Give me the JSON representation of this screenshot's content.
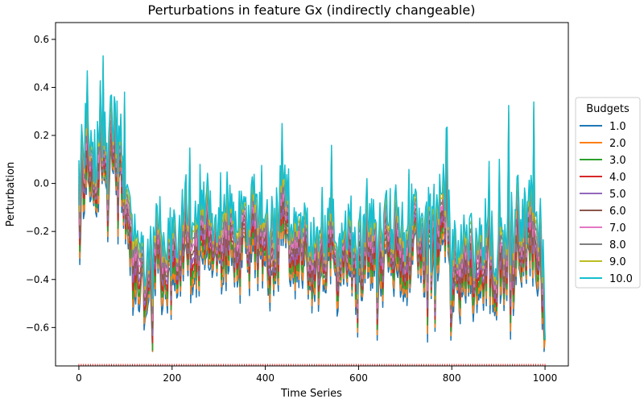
{
  "chart_data": {
    "type": "line",
    "title": "Perturbations in feature Gx (indirectly changeable)",
    "xlabel": "Time Series",
    "ylabel": "Perturbation",
    "xlim": [
      -50,
      1050
    ],
    "ylim": [
      -0.76,
      0.67
    ],
    "xticks": [
      0,
      200,
      400,
      600,
      800,
      1000
    ],
    "xtick_labels": [
      "0",
      "200",
      "400",
      "600",
      "800",
      "1000"
    ],
    "yticks": [
      -0.6,
      -0.4,
      -0.2,
      0.0,
      0.2,
      0.4,
      0.6
    ],
    "ytick_labels": [
      "−0.6",
      "−0.4",
      "−0.2",
      "0.0",
      "0.2",
      "0.4",
      "0.6"
    ],
    "grid": false,
    "legend": {
      "title": "Budgets",
      "placement": "center-right outside",
      "entries": [
        "1.0",
        "2.0",
        "3.0",
        "4.0",
        "5.0",
        "6.0",
        "7.0",
        "8.0",
        "9.0",
        "10.0"
      ]
    },
    "colors": [
      "#1f77b4",
      "#ff7f0e",
      "#2ca02c",
      "#d62728",
      "#9467bd",
      "#8c564b",
      "#e377c2",
      "#7f7f7f",
      "#bcbd22",
      "#17becf"
    ],
    "base_curve": {
      "x": [
        0,
        10,
        20,
        30,
        40,
        50,
        60,
        65,
        70,
        75,
        80,
        90,
        100,
        110,
        120,
        130,
        140,
        150,
        160,
        170,
        180,
        190,
        200,
        210,
        220,
        230,
        240,
        250,
        260,
        270,
        280,
        290,
        300,
        310,
        320,
        330,
        340,
        350,
        360,
        370,
        380,
        390,
        400,
        410,
        420,
        430,
        440,
        450,
        460,
        470,
        480,
        490,
        500,
        510,
        520,
        530,
        540,
        550,
        560,
        570,
        580,
        590,
        600,
        610,
        620,
        630,
        640,
        650,
        660,
        670,
        680,
        690,
        700,
        710,
        720,
        730,
        740,
        750,
        760,
        770,
        780,
        790,
        800,
        810,
        820,
        830,
        840,
        850,
        860,
        870,
        880,
        890,
        900,
        910,
        920,
        930,
        940,
        950,
        960,
        970,
        980,
        990,
        1000
      ],
      "y": [
        0.02,
        0.06,
        0.02,
        0.04,
        0.03,
        0.06,
        0.04,
        0.18,
        0.15,
        0.22,
        0.12,
        0.15,
        -0.15,
        -0.2,
        -0.35,
        -0.38,
        -0.4,
        -0.42,
        -0.3,
        -0.25,
        -0.35,
        -0.38,
        -0.3,
        -0.35,
        -0.28,
        -0.2,
        -0.35,
        -0.22,
        -0.18,
        -0.2,
        -0.15,
        -0.25,
        -0.18,
        -0.25,
        -0.15,
        -0.2,
        -0.3,
        -0.2,
        -0.25,
        -0.2,
        -0.18,
        -0.25,
        -0.2,
        -0.28,
        -0.3,
        -0.22,
        -0.12,
        -0.2,
        -0.28,
        -0.2,
        -0.25,
        -0.3,
        -0.3,
        -0.35,
        -0.25,
        -0.3,
        -0.2,
        -0.3,
        -0.35,
        -0.32,
        -0.25,
        -0.3,
        -0.35,
        -0.25,
        -0.2,
        -0.25,
        -0.3,
        -0.28,
        -0.25,
        -0.35,
        -0.22,
        -0.25,
        -0.3,
        -0.25,
        -0.2,
        -0.25,
        -0.28,
        -0.22,
        -0.2,
        -0.18,
        -0.15,
        -0.2,
        -0.35,
        -0.42,
        -0.38,
        -0.3,
        -0.35,
        -0.4,
        -0.32,
        -0.28,
        -0.3,
        -0.35,
        -0.4,
        -0.32,
        -0.28,
        -0.3,
        -0.2,
        -0.25,
        -0.18,
        -0.15,
        -0.2,
        -0.3,
        -0.55
      ],
      "note_range": [
        -0.7,
        0.62
      ]
    }
  }
}
